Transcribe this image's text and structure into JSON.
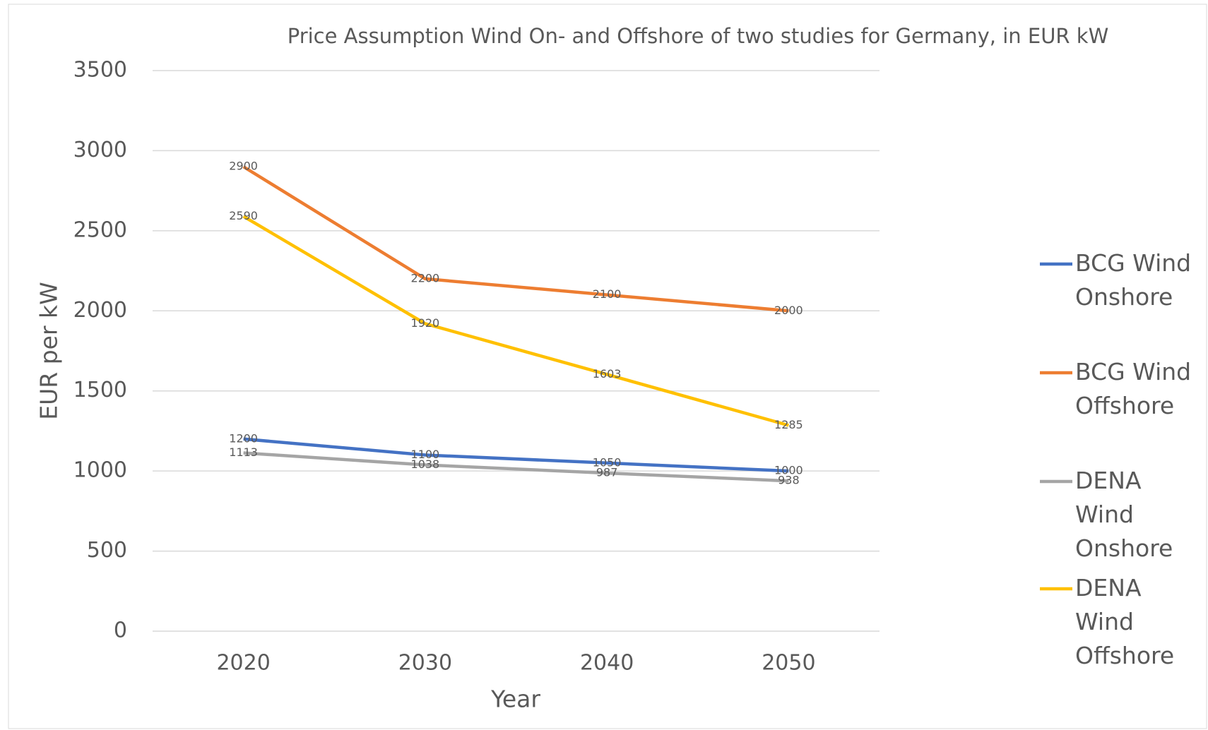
{
  "chart_data": {
    "type": "line",
    "title": "Price Assumption Wind On- and Offshore of two studies for Germany, in EUR kW",
    "x_label": "Year",
    "y_label": "EUR per kW",
    "categories": [
      "2020",
      "2030",
      "2040",
      "2050"
    ],
    "series": [
      {
        "name": "BCG Wind Onshore",
        "color": "#4472c4",
        "values": [
          1200,
          1100,
          1050,
          1000
        ]
      },
      {
        "name": "BCG Wind Offshore",
        "color": "#ed7d31",
        "values": [
          2900,
          2200,
          2100,
          2000
        ]
      },
      {
        "name": "DENA Wind Onshore",
        "color": "#a5a5a5",
        "values": [
          1113,
          1038,
          987,
          938
        ]
      },
      {
        "name": "DENA Wind Offshore",
        "color": "#ffc000",
        "values": [
          2590,
          1920,
          1603,
          1285
        ]
      }
    ],
    "ylim": [
      0,
      3500
    ],
    "yticks": [
      0,
      500,
      1000,
      1500,
      2000,
      2500,
      3000,
      3500
    ],
    "grid": true,
    "legend": "right"
  }
}
